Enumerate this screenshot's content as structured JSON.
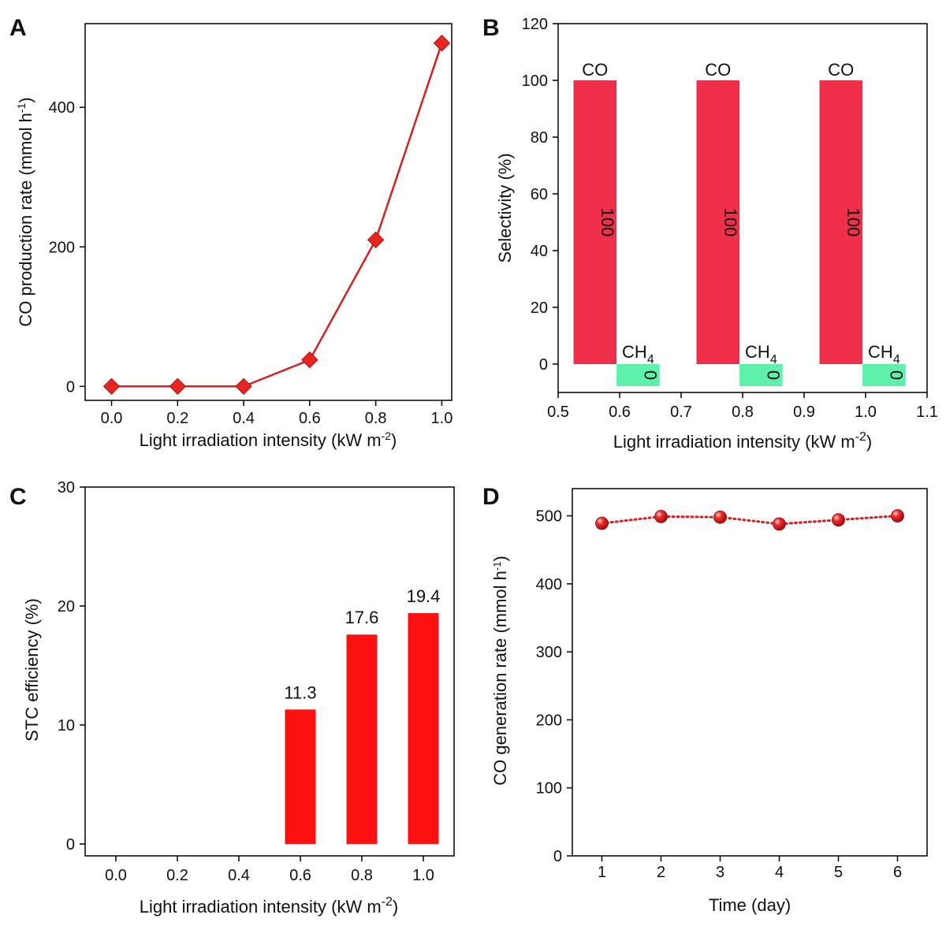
{
  "chart_data": [
    {
      "panel": "A",
      "type": "line",
      "x": [
        0.0,
        0.2,
        0.4,
        0.6,
        0.8,
        1.0
      ],
      "y": [
        0,
        0,
        0,
        38,
        210,
        492
      ],
      "xlabel": "Light irradiation intensity (kW m",
      "xlabel_sup": "-2",
      "xlabel_end": ")",
      "ylabel": "CO production rate (mmol h",
      "ylabel_sup": "-1",
      "ylabel_end": ")",
      "xlim": [
        -0.08,
        1.03
      ],
      "ylim": [
        -20,
        520
      ],
      "xticks": [
        0.0,
        0.2,
        0.4,
        0.6,
        0.8,
        1.0
      ],
      "xtick_labels": [
        "0.0",
        "0.2",
        "0.4",
        "0.6",
        "0.8",
        "1.0"
      ],
      "yticks": [
        0,
        200,
        400
      ],
      "ytick_labels": [
        "0",
        "200",
        "400"
      ],
      "marker": "diamond",
      "color": "#e8251f"
    },
    {
      "panel": "B",
      "type": "bar",
      "series": [
        {
          "name": "CO",
          "color": "#f0304a",
          "x": [
            0.56,
            0.76,
            0.96
          ],
          "values": [
            100,
            100,
            100
          ],
          "value_labels": [
            "100",
            "100",
            "100"
          ],
          "top_labels": [
            "CO",
            "CO",
            "CO"
          ]
        },
        {
          "name": "CH4",
          "label_base": "CH",
          "label_sub": "4",
          "color": "#5ff0ac",
          "x": [
            0.63,
            0.83,
            1.03
          ],
          "values": [
            0,
            0,
            0
          ],
          "value_labels": [
            "0",
            "0",
            "0"
          ]
        }
      ],
      "bar_width": 0.07,
      "xlabel": "Light irradiation intensity (kW m",
      "xlabel_sup": "-2",
      "xlabel_end": ")",
      "ylabel": "Selectivity (%)",
      "xlim": [
        0.5,
        1.1
      ],
      "ylim": [
        -10,
        120
      ],
      "xticks": [
        0.5,
        0.6,
        0.7,
        0.8,
        0.9,
        1.0,
        1.1
      ],
      "xtick_labels": [
        "0.5",
        "0.6",
        "0.7",
        "0.8",
        "0.9",
        "1.0",
        "1.1"
      ],
      "yticks": [
        0,
        20,
        40,
        60,
        80,
        100,
        120
      ],
      "ytick_labels": [
        "0",
        "20",
        "40",
        "60",
        "80",
        "100",
        "120"
      ]
    },
    {
      "panel": "C",
      "type": "bar",
      "categories": [
        "0.0",
        "0.2",
        "0.4",
        "0.6",
        "0.8",
        "1.0"
      ],
      "values": [
        0,
        0,
        0,
        11.3,
        17.6,
        19.4
      ],
      "value_labels": [
        "",
        "",
        "",
        "11.3",
        "17.6",
        "19.4"
      ],
      "bar_width": 0.1,
      "color": "#ff1010",
      "xlabel": "Light irradiation intensity (kW m",
      "xlabel_sup": "-2",
      "xlabel_end": ")",
      "ylabel": "STC efficiency (%)",
      "xlim": [
        -0.1,
        1.1
      ],
      "ylim": [
        -1,
        30
      ],
      "yticks": [
        0,
        10,
        20,
        30
      ],
      "ytick_labels": [
        "0",
        "10",
        "20",
        "30"
      ]
    },
    {
      "panel": "D",
      "type": "line",
      "x": [
        1,
        2,
        3,
        4,
        5,
        6
      ],
      "y": [
        489,
        499,
        498,
        488,
        494,
        500
      ],
      "xlabel": "Time (day)",
      "ylabel": "CO generation rate (mmol h",
      "ylabel_sup": "-1",
      "ylabel_end": ")",
      "xlim": [
        0.5,
        6.5
      ],
      "ylim": [
        0,
        540
      ],
      "xticks": [
        1,
        2,
        3,
        4,
        5,
        6
      ],
      "xtick_labels": [
        "1",
        "2",
        "3",
        "4",
        "5",
        "6"
      ],
      "yticks": [
        0,
        100,
        200,
        300,
        400,
        500
      ],
      "ytick_labels": [
        "0",
        "100",
        "200",
        "300",
        "400",
        "500"
      ],
      "marker": "sphere",
      "line_style": "dotted",
      "color": "#e02020"
    }
  ]
}
